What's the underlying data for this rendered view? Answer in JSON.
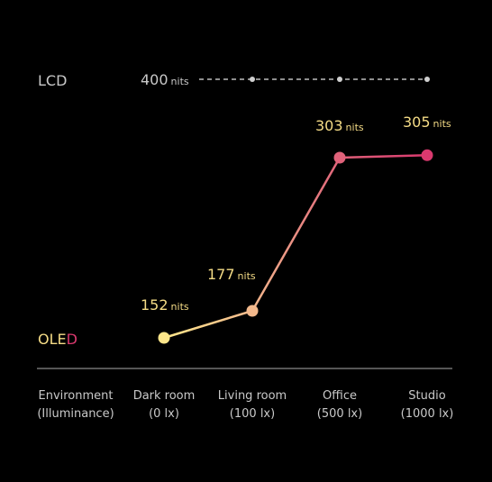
{
  "chart_data": {
    "type": "line",
    "x_header": [
      "Environment",
      "(Illuminance)"
    ],
    "categories": [
      {
        "name": "Dark room",
        "sub": "(0 lx)"
      },
      {
        "name": "Living room",
        "sub": "(100 lx)"
      },
      {
        "name": "Office",
        "sub": "(500 lx)"
      },
      {
        "name": "Studio",
        "sub": "(1000 lx)"
      }
    ],
    "unit": "nits",
    "series": [
      {
        "name": "LCD",
        "values": [
          400,
          400,
          400,
          400
        ],
        "data_label": "400",
        "style": "dashed",
        "color": "#cfcfcf"
      },
      {
        "name": "OLED",
        "name_parts": [
          "OLE",
          "D"
        ],
        "values": [
          152,
          177,
          303,
          305
        ],
        "data_labels": [
          "152",
          "177",
          "303",
          "305"
        ],
        "colors": [
          "#fde68a",
          "#f3b98c",
          "#e0627a",
          "#d9396e"
        ],
        "label_color": "#f5dc86"
      }
    ]
  }
}
